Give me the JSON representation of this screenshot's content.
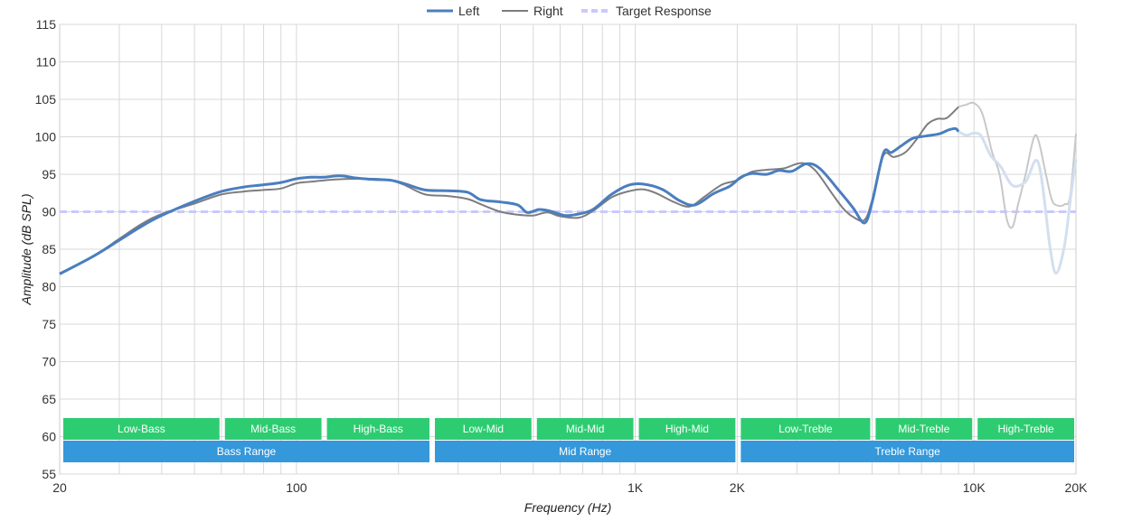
{
  "chart_data": {
    "type": "line",
    "x_scale": "log",
    "xlim": [
      20,
      20000
    ],
    "ylim": [
      55,
      115
    ],
    "grid": true,
    "legend_position": "top-center",
    "xlabel": "Frequency (Hz)",
    "ylabel": "Amplitude (dB SPL)",
    "x_ticks": [
      {
        "value": 20,
        "label": "20"
      },
      {
        "value": 100,
        "label": "100"
      },
      {
        "value": 1000,
        "label": "1K"
      },
      {
        "value": 2000,
        "label": "2K"
      },
      {
        "value": 10000,
        "label": "10K"
      },
      {
        "value": 20000,
        "label": "20K"
      }
    ],
    "y_ticks": [
      55,
      60,
      65,
      70,
      75,
      80,
      85,
      90,
      95,
      100,
      105,
      110,
      115
    ],
    "series": [
      {
        "name": "Left",
        "color": "#4a7ebf",
        "faded_color": "#d3dfef",
        "fade_from": 9000,
        "points": [
          [
            20,
            81.7
          ],
          [
            25,
            84
          ],
          [
            30,
            86.2
          ],
          [
            35,
            88.1
          ],
          [
            40,
            89.5
          ],
          [
            50,
            91.4
          ],
          [
            60,
            92.7
          ],
          [
            70,
            93.3
          ],
          [
            80,
            93.6
          ],
          [
            90,
            93.9
          ],
          [
            100,
            94.4
          ],
          [
            110,
            94.6
          ],
          [
            120,
            94.6
          ],
          [
            135,
            94.8
          ],
          [
            150,
            94.5
          ],
          [
            170,
            94.3
          ],
          [
            190,
            94.2
          ],
          [
            210,
            93.7
          ],
          [
            240,
            92.9
          ],
          [
            280,
            92.8
          ],
          [
            320,
            92.6
          ],
          [
            350,
            91.6
          ],
          [
            400,
            91.3
          ],
          [
            450,
            90.9
          ],
          [
            480,
            89.9
          ],
          [
            520,
            90.3
          ],
          [
            560,
            90.1
          ],
          [
            620,
            89.5
          ],
          [
            680,
            89.7
          ],
          [
            750,
            90.3
          ],
          [
            850,
            92.3
          ],
          [
            950,
            93.5
          ],
          [
            1050,
            93.7
          ],
          [
            1200,
            93
          ],
          [
            1350,
            91.5
          ],
          [
            1500,
            90.9
          ],
          [
            1700,
            92.4
          ],
          [
            1900,
            93.4
          ],
          [
            2050,
            94.6
          ],
          [
            2200,
            95.1
          ],
          [
            2450,
            95
          ],
          [
            2650,
            95.5
          ],
          [
            2900,
            95.4
          ],
          [
            3200,
            96.4
          ],
          [
            3500,
            95.8
          ],
          [
            4000,
            92.8
          ],
          [
            4400,
            90.5
          ],
          [
            4750,
            88.5
          ],
          [
            5000,
            91.2
          ],
          [
            5400,
            97.8
          ],
          [
            5700,
            97.9
          ],
          [
            6100,
            98.8
          ],
          [
            6600,
            99.8
          ],
          [
            7200,
            100.1
          ],
          [
            7900,
            100.4
          ],
          [
            8400,
            100.9
          ],
          [
            8800,
            101.1
          ],
          [
            9000,
            100.7
          ],
          [
            9500,
            100.2
          ],
          [
            10000,
            100.5
          ],
          [
            10500,
            100.1
          ],
          [
            11200,
            97.5
          ],
          [
            12000,
            96
          ],
          [
            13000,
            93.5
          ],
          [
            14200,
            94
          ],
          [
            15500,
            96.5
          ],
          [
            16800,
            85
          ],
          [
            17500,
            81.8
          ],
          [
            18500,
            85.5
          ],
          [
            19300,
            92
          ],
          [
            20000,
            97
          ]
        ]
      },
      {
        "name": "Right",
        "color": "#7d7d7d",
        "faded_color": "#c8c8c8",
        "fade_from": 9000,
        "points": [
          [
            20,
            81.8
          ],
          [
            25,
            84
          ],
          [
            30,
            86.4
          ],
          [
            35,
            88.4
          ],
          [
            40,
            89.7
          ],
          [
            50,
            91.1
          ],
          [
            60,
            92.3
          ],
          [
            70,
            92.7
          ],
          [
            80,
            92.9
          ],
          [
            90,
            93.1
          ],
          [
            100,
            93.8
          ],
          [
            110,
            94
          ],
          [
            130,
            94.3
          ],
          [
            150,
            94.4
          ],
          [
            170,
            94.4
          ],
          [
            190,
            94.2
          ],
          [
            210,
            93.5
          ],
          [
            240,
            92.3
          ],
          [
            280,
            92.1
          ],
          [
            320,
            91.7
          ],
          [
            350,
            91
          ],
          [
            400,
            90
          ],
          [
            450,
            89.6
          ],
          [
            500,
            89.5
          ],
          [
            550,
            89.9
          ],
          [
            600,
            89.4
          ],
          [
            680,
            89.2
          ],
          [
            750,
            90.1
          ],
          [
            850,
            91.9
          ],
          [
            950,
            92.7
          ],
          [
            1050,
            93
          ],
          [
            1150,
            92.5
          ],
          [
            1300,
            91.3
          ],
          [
            1450,
            90.7
          ],
          [
            1600,
            92
          ],
          [
            1800,
            93.6
          ],
          [
            2000,
            94.2
          ],
          [
            2200,
            95.3
          ],
          [
            2450,
            95.6
          ],
          [
            2750,
            95.8
          ],
          [
            3100,
            96.5
          ],
          [
            3400,
            95.5
          ],
          [
            3800,
            92.5
          ],
          [
            4100,
            90.5
          ],
          [
            4400,
            89.3
          ],
          [
            4750,
            88.9
          ],
          [
            5000,
            91.5
          ],
          [
            5400,
            97.5
          ],
          [
            5800,
            97.3
          ],
          [
            6300,
            98
          ],
          [
            6800,
            99.8
          ],
          [
            7300,
            101.7
          ],
          [
            7800,
            102.4
          ],
          [
            8300,
            102.5
          ],
          [
            9000,
            104
          ],
          [
            9500,
            104.3
          ],
          [
            10000,
            104.5
          ],
          [
            10600,
            103
          ],
          [
            11300,
            98
          ],
          [
            11900,
            95
          ],
          [
            12500,
            89
          ],
          [
            13000,
            88
          ],
          [
            13500,
            91
          ],
          [
            14200,
            95
          ],
          [
            15000,
            99.8
          ],
          [
            15500,
            99.5
          ],
          [
            16300,
            95
          ],
          [
            17000,
            91.5
          ],
          [
            17800,
            90.8
          ],
          [
            18500,
            91
          ],
          [
            19200,
            92
          ],
          [
            20000,
            100.4
          ]
        ]
      }
    ],
    "target": {
      "name": "Target Response",
      "color": "#c9c9ff",
      "value": 90
    },
    "bands": {
      "top_row": [
        {
          "label": "Low-Bass",
          "from": 20,
          "to": 60
        },
        {
          "label": "Mid-Bass",
          "from": 60,
          "to": 120
        },
        {
          "label": "High-Bass",
          "from": 120,
          "to": 250
        },
        {
          "label": "Low-Mid",
          "from": 250,
          "to": 500
        },
        {
          "label": "Mid-Mid",
          "from": 500,
          "to": 1000
        },
        {
          "label": "High-Mid",
          "from": 1000,
          "to": 2000
        },
        {
          "label": "Low-Treble",
          "from": 2000,
          "to": 5000
        },
        {
          "label": "Mid-Treble",
          "from": 5000,
          "to": 10000
        },
        {
          "label": "High-Treble",
          "from": 10000,
          "to": 20000
        }
      ],
      "bottom_row": [
        {
          "label": "Bass Range",
          "from": 20,
          "to": 250
        },
        {
          "label": "Mid Range",
          "from": 250,
          "to": 2000
        },
        {
          "label": "Treble Range",
          "from": 2000,
          "to": 20000
        }
      ],
      "top_color": "#2ecc71",
      "bottom_color": "#3498db"
    }
  }
}
